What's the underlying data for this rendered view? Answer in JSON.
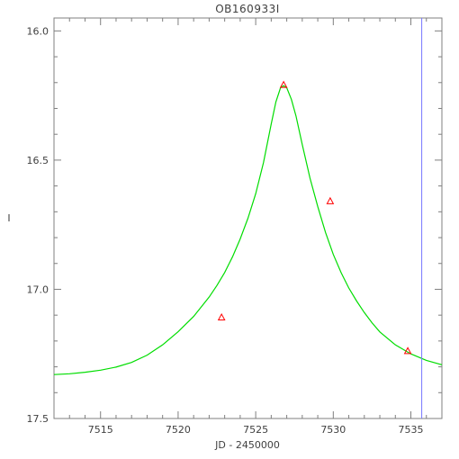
{
  "chart_data": {
    "type": "scatter",
    "title": "OB160933I",
    "xlabel": "JD - 2450000",
    "ylabel": "I",
    "xlim": [
      7512,
      7537
    ],
    "ylim": [
      17.5,
      15.95
    ],
    "y_inverted": true,
    "x_ticks": [
      7515,
      7520,
      7525,
      7530,
      7535
    ],
    "x_tick_labels": [
      "7515",
      "7520",
      "7525",
      "7530",
      "7535"
    ],
    "y_ticks": [
      16.0,
      16.5,
      17.0,
      17.5
    ],
    "y_tick_labels": [
      "16.0",
      "16.5",
      "17.0",
      "17.5"
    ],
    "grid": false,
    "series": [
      {
        "kind": "points",
        "marker": "triangle",
        "color": "#ff0000",
        "x": [
          7522.8,
          7526.8,
          7529.8,
          7534.8
        ],
        "y": [
          17.11,
          16.21,
          16.66,
          17.24
        ]
      },
      {
        "kind": "model-curve",
        "color": "#00dd00",
        "x": [
          7512,
          7513,
          7514,
          7515,
          7516,
          7517,
          7518,
          7519,
          7520,
          7521,
          7522,
          7522.5,
          7523,
          7523.5,
          7524,
          7524.5,
          7525,
          7525.5,
          7526,
          7526.3,
          7526.6,
          7526.8,
          7527,
          7527.3,
          7527.6,
          7528,
          7528.5,
          7529,
          7529.5,
          7530,
          7530.5,
          7531,
          7531.5,
          7532,
          7532.5,
          7533,
          7534,
          7535,
          7536,
          7537
        ],
        "y": [
          17.33,
          17.327,
          17.321,
          17.313,
          17.301,
          17.283,
          17.255,
          17.215,
          17.164,
          17.105,
          17.03,
          16.985,
          16.935,
          16.875,
          16.805,
          16.725,
          16.63,
          16.51,
          16.36,
          16.275,
          16.22,
          16.212,
          16.22,
          16.265,
          16.33,
          16.44,
          16.57,
          16.68,
          16.78,
          16.865,
          16.935,
          16.995,
          17.045,
          17.09,
          17.13,
          17.165,
          17.215,
          17.25,
          17.275,
          17.292
        ]
      },
      {
        "kind": "vline",
        "color": "#7777ff",
        "x": 7535.7
      }
    ]
  }
}
